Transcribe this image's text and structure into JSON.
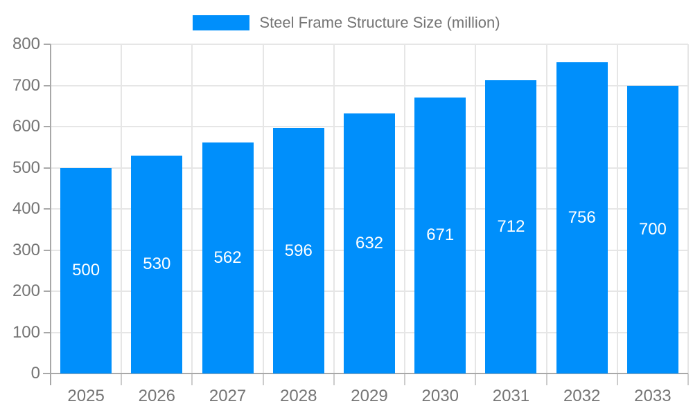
{
  "chart_data": {
    "type": "bar",
    "title": "Steel Frame Structure Size (million)",
    "categories": [
      "2025",
      "2026",
      "2027",
      "2028",
      "2029",
      "2030",
      "2031",
      "2032",
      "2033"
    ],
    "series": [
      {
        "name": "Steel Frame Structure Size (million)",
        "values": [
          500,
          530,
          562,
          596,
          632,
          671,
          712,
          756,
          700
        ]
      }
    ],
    "xlabel": "",
    "ylabel": "",
    "ylim": [
      0,
      800
    ],
    "y_tick_step": 100,
    "y_ticks": [
      0,
      100,
      200,
      300,
      400,
      500,
      600,
      700,
      800
    ],
    "grid": true,
    "legend_position": "top",
    "value_labels": "centered-in-bar",
    "colors": {
      "bar": "#008FFB",
      "value_label": "#ffffff",
      "axis_text": "#757575",
      "axis_line": "#a8a8a8",
      "gridline": "#e6e6e6",
      "minor_tick": "#cccccc",
      "background": "#ffffff"
    }
  }
}
